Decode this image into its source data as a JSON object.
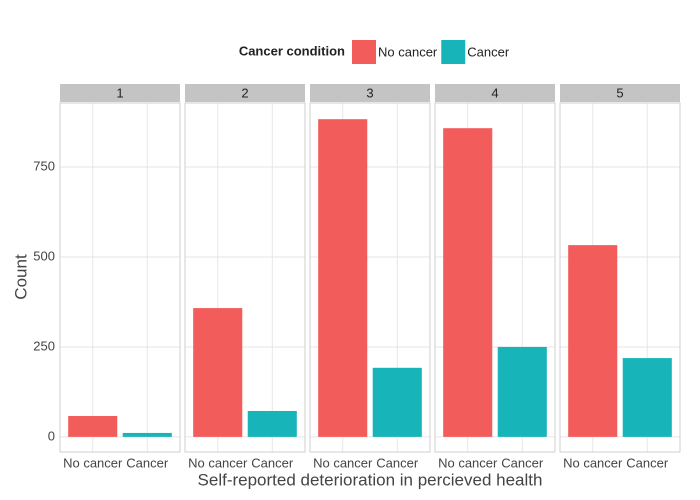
{
  "chart_data": {
    "type": "bar",
    "legend_title": "Cancer condition",
    "xlabel": "Self-reported deterioration in percieved health",
    "ylabel": "Count",
    "categories": [
      "No cancer",
      "Cancer"
    ],
    "colors": [
      "#f25d5b",
      "#17b5b9"
    ],
    "facets": [
      {
        "title": "1",
        "values": [
          58,
          11
        ]
      },
      {
        "title": "2",
        "values": [
          358,
          72
        ]
      },
      {
        "title": "3",
        "values": [
          883,
          192
        ]
      },
      {
        "title": "4",
        "values": [
          858,
          250
        ]
      },
      {
        "title": "5",
        "values": [
          533,
          219
        ]
      }
    ],
    "ylim": [
      -42,
      928
    ],
    "yticks": [
      0,
      250,
      500,
      750
    ],
    "grid": true,
    "legend_position": "top"
  }
}
